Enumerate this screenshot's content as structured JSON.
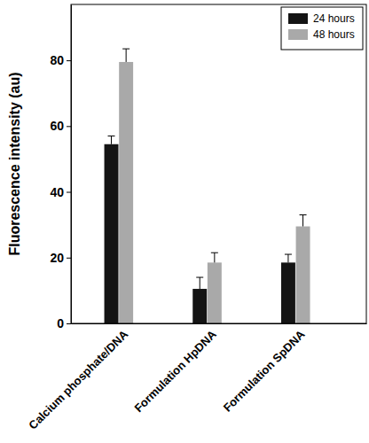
{
  "chart_data": {
    "type": "bar",
    "ylabel": "Fluorescence intensity (au)",
    "categories": [
      "Calcium phosphate/DNA",
      "Formulation HpDNA",
      "Formulation SpDNA"
    ],
    "series": [
      {
        "name": "24 hours",
        "color": "#141414",
        "values": [
          54.5,
          10.5,
          18.5
        ],
        "errors": [
          2.5,
          3.5,
          2.5
        ]
      },
      {
        "name": "48 hours",
        "color": "#a9a9a9",
        "values": [
          79.5,
          18.5,
          29.5
        ],
        "errors": [
          4,
          3,
          3.5
        ]
      }
    ],
    "ylim": [
      0,
      97
    ],
    "yticks": [
      0,
      20,
      40,
      60,
      80
    ],
    "grid": false,
    "legend": "upper right"
  }
}
